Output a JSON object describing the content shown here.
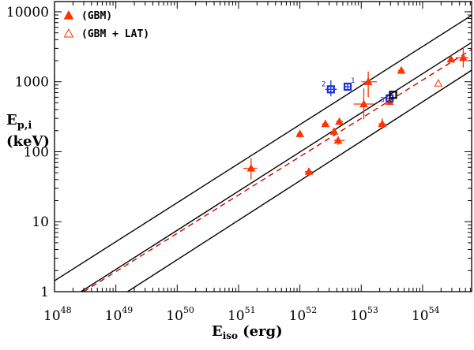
{
  "chart_data": {
    "type": "scatter",
    "xlabel": "E",
    "xlabel_sub": "iso",
    "xlabel_unit": "(erg)",
    "ylabel_line1": "E",
    "ylabel_sub": "p,i",
    "ylabel_line2": "(keV)",
    "x_scale": "log",
    "y_scale": "log",
    "xlim": [
      1e+48,
      6.3e+54
    ],
    "ylim": [
      1,
      14000
    ],
    "x_ticks": [
      {
        "value": 1e+48,
        "base": "10",
        "exp": "48"
      },
      {
        "value": 1e+49,
        "base": "10",
        "exp": "49"
      },
      {
        "value": 1e+50,
        "base": "10",
        "exp": "50"
      },
      {
        "value": 1e+51,
        "base": "10",
        "exp": "51"
      },
      {
        "value": 1e+52,
        "base": "10",
        "exp": "52"
      },
      {
        "value": 1e+53,
        "base": "10",
        "exp": "53"
      },
      {
        "value": 1e+54,
        "base": "10",
        "exp": "54"
      }
    ],
    "y_ticks": [
      {
        "value": 1,
        "label": "1"
      },
      {
        "value": 10,
        "label": "10"
      },
      {
        "value": 100,
        "label": "100"
      },
      {
        "value": 1000,
        "label": "1000"
      },
      {
        "value": 10000,
        "label": "10000"
      }
    ],
    "legend": {
      "position": "top-left",
      "entries": [
        {
          "label": "(GBM)",
          "marker": "filled-triangle",
          "color": "#ff3300"
        },
        {
          "label": "(GBM + LAT)",
          "marker": "open-triangle",
          "color": "#ff3300"
        }
      ]
    },
    "lines": [
      {
        "style": "solid",
        "color": "#000000",
        "points": [
          [
            1e+48,
            1.43
          ],
          [
            6.3e+54,
            8900
          ]
        ]
      },
      {
        "style": "solid",
        "color": "#000000",
        "points": [
          [
            2.7e+48,
            1.0
          ],
          [
            6.3e+54,
            3650
          ]
        ]
      },
      {
        "style": "solid",
        "color": "#000000",
        "points": [
          [
            1.55e+49,
            1.0
          ],
          [
            6.3e+54,
            1460
          ]
        ]
      },
      {
        "style": "dashed",
        "color": "#cc0000",
        "points": [
          [
            3e+48,
            1.0
          ],
          [
            6.3e+54,
            2900
          ]
        ]
      }
    ],
    "series": [
      {
        "name": "(GBM)",
        "marker": "filled-triangle",
        "color": "#ff3300",
        "points": [
          {
            "x": 1.6e+51,
            "y": 58,
            "xerr": [
              1.2e+51,
              2e+51
            ],
            "yerr": [
              40,
              80
            ]
          },
          {
            "x": 1e+52,
            "y": 180,
            "xerr": [
              9e+51,
              1.1e+52
            ],
            "yerr": [
              160,
              200
            ]
          },
          {
            "x": 1.4e+52,
            "y": 52,
            "xerr": [
              1.2e+52,
              1.6e+52
            ],
            "yerr": [
              45,
              58
            ]
          },
          {
            "x": 2.6e+52,
            "y": 250,
            "xerr": [
              2.3e+52,
              2.9e+52
            ],
            "yerr": [
              225,
              280
            ]
          },
          {
            "x": 3.6e+52,
            "y": 195,
            "xerr": [
              3.2e+52,
              4e+52
            ],
            "yerr": [
              175,
              215
            ]
          },
          {
            "x": 4.2e+52,
            "y": 145,
            "xerr": [
              3.6e+52,
              5.4e+52
            ],
            "yerr": [
              125,
              165
            ]
          },
          {
            "x": 4.4e+52,
            "y": 270,
            "xerr": [
              3.9e+52,
              5.1e+52
            ],
            "yerr": [
              240,
              300
            ]
          },
          {
            "x": 1.1e+53,
            "y": 480,
            "xerr": [
              7.5e+52,
              1.6e+53
            ],
            "yerr": [
              290,
              800
            ]
          },
          {
            "x": 1.3e+53,
            "y": 1000,
            "xerr": [
              1e+53,
              1.8e+53
            ],
            "yerr": [
              600,
              1400
            ]
          },
          {
            "x": 2.2e+53,
            "y": 250,
            "xerr": [
              1.9e+53,
              2.5e+53
            ],
            "yerr": [
              210,
              300
            ]
          },
          {
            "x": 2.9e+53,
            "y": 520,
            "xerr": [
              2.6e+53,
              3.2e+53
            ],
            "yerr": [
              470,
              580
            ]
          },
          {
            "x": 4.5e+53,
            "y": 1450,
            "xerr": [
              4e+53,
              5e+53
            ],
            "yerr": [
              1300,
              1650
            ]
          },
          {
            "x": 2.9e+54,
            "y": 2100,
            "xerr": [
              2.7e+54,
              3.2e+54
            ],
            "yerr": [
              1900,
              2300
            ]
          },
          {
            "x": 4.6e+54,
            "y": 2200,
            "xerr": [
              3.5e+54,
              5.6e+54
            ],
            "yerr": [
              1600,
              3100
            ]
          }
        ]
      },
      {
        "name": "(GBM + LAT)",
        "marker": "open-triangle",
        "color": "#ff3300",
        "points": [
          {
            "x": 1.8e+54,
            "y": 950
          }
        ]
      },
      {
        "marker": "open-square",
        "color": "#1a2fd6",
        "points": [
          {
            "x": 6e+52,
            "y": 850,
            "label": "1",
            "xerr": [
              5.3e+52,
              6.8e+52
            ],
            "yerr": [
              760,
              950
            ]
          },
          {
            "x": 3.2e+52,
            "y": 780,
            "label": "2",
            "xerr": [
              2.6e+52,
              4e+52
            ],
            "yerr": [
              620,
              1050
            ]
          },
          {
            "x": 2.9e+53,
            "y": 580,
            "label": "3",
            "xerr": [
              2.6e+53,
              3.2e+53
            ],
            "yerr": [
              530,
              640
            ]
          }
        ]
      },
      {
        "marker": "open-square",
        "color": "#000000",
        "points": [
          {
            "x": 3.3e+53,
            "y": 650
          }
        ]
      }
    ]
  }
}
